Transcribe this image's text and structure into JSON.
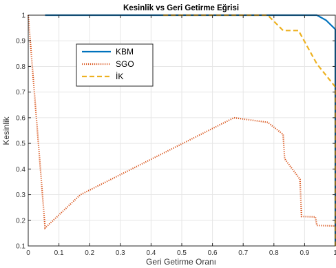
{
  "chart_data": {
    "type": "line",
    "title": "Kesinlik vs Geri Getirme Eğrisi",
    "xlabel": "Geri Getirme Oranı",
    "ylabel": "Kesinlik",
    "xlim": [
      0,
      1
    ],
    "ylim": [
      0.1,
      1
    ],
    "xticks": [
      0,
      0.1,
      0.2,
      0.3,
      0.4,
      0.5,
      0.6,
      0.7,
      0.8,
      0.9,
      1
    ],
    "xtick_labels": [
      "0",
      "0.1",
      "0.2",
      "0.3",
      "0.4",
      "0.5",
      "0.6",
      "0.7",
      "0.8",
      "0.9",
      "1"
    ],
    "yticks": [
      0.1,
      0.2,
      0.3,
      0.4,
      0.5,
      0.6,
      0.7,
      0.8,
      0.9,
      1
    ],
    "ytick_labels": [
      "0.1",
      "0.2",
      "0.3",
      "0.4",
      "0.5",
      "0.6",
      "0.7",
      "0.8",
      "0.9",
      "1"
    ],
    "grid": true,
    "legend_position": "upper-left-inside",
    "series": [
      {
        "name": "KBM",
        "color": "#0072BD",
        "style": "solid",
        "x": [
          0.055,
          0.94,
          0.97,
          1.0,
          1.0
        ],
        "y": [
          1.0,
          1.0,
          0.98,
          0.945,
          0.1
        ]
      },
      {
        "name": "SGO",
        "color": "#D95319",
        "style": "dotted",
        "x": [
          0.0,
          0.055,
          0.17,
          0.67,
          0.78,
          0.83,
          0.835,
          0.885,
          0.89,
          0.935,
          0.94,
          1.0
        ],
        "y": [
          1.0,
          0.17,
          0.3,
          0.6,
          0.582,
          0.535,
          0.44,
          0.36,
          0.215,
          0.213,
          0.18,
          0.178
        ]
      },
      {
        "name": "İK",
        "color": "#EDB120",
        "style": "dashed",
        "x": [
          0.44,
          0.78,
          0.83,
          0.88,
          0.94,
          1.0,
          1.0
        ],
        "y": [
          1.0,
          1.0,
          0.94,
          0.94,
          0.81,
          0.72,
          0.1
        ]
      }
    ]
  }
}
